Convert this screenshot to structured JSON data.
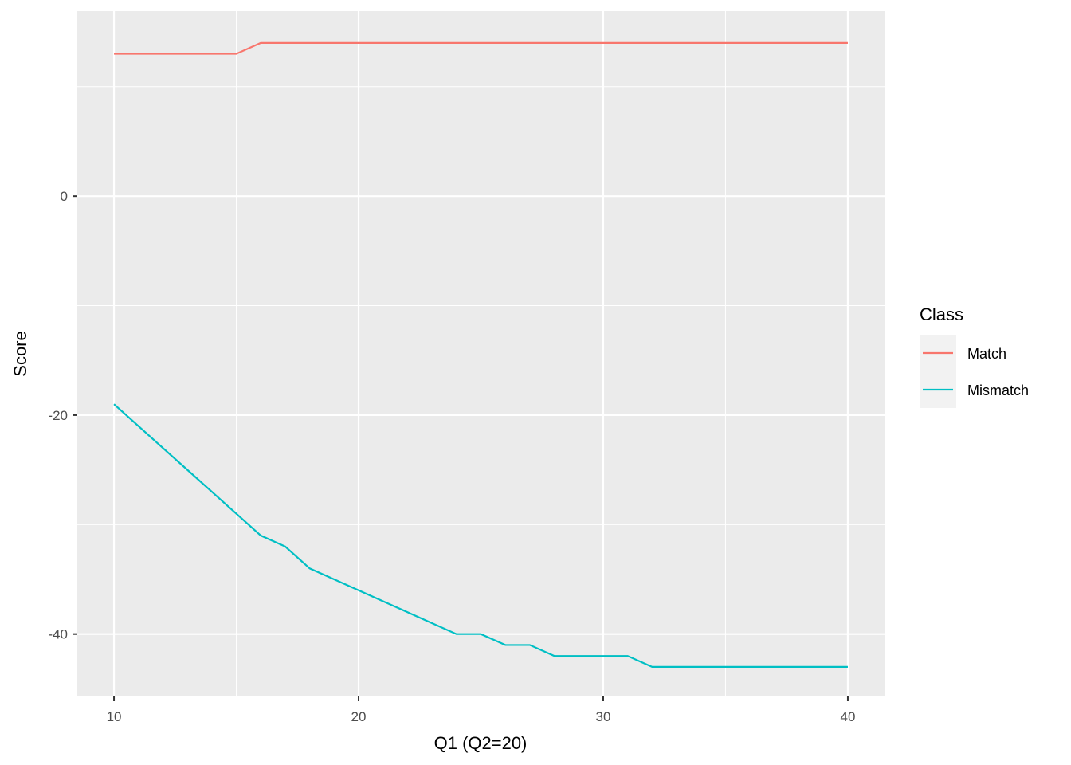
{
  "chart_data": {
    "type": "line",
    "title": "",
    "xlabel": "Q1 (Q2=20)",
    "ylabel": "Score",
    "xlim": [
      8.5,
      41.5
    ],
    "ylim": [
      -45.7,
      16.9
    ],
    "xticks": [
      10,
      20,
      30,
      40
    ],
    "yticks": [
      0,
      -20,
      -40
    ],
    "xtick_labels": [
      "10",
      "20",
      "30",
      "40"
    ],
    "ytick_labels": [
      "0",
      "-20",
      "-40"
    ],
    "grid": true,
    "legend": {
      "title": "Class",
      "position": "right"
    },
    "x": [
      10,
      11,
      12,
      13,
      14,
      15,
      16,
      17,
      18,
      19,
      20,
      21,
      22,
      23,
      24,
      25,
      26,
      27,
      28,
      29,
      30,
      31,
      32,
      33,
      34,
      35,
      36,
      37,
      38,
      39,
      40
    ],
    "series": [
      {
        "name": "Match",
        "color": "#F8766D",
        "values": [
          13,
          13,
          13,
          13,
          13,
          13,
          14,
          14,
          14,
          14,
          14,
          14,
          14,
          14,
          14,
          14,
          14,
          14,
          14,
          14,
          14,
          14,
          14,
          14,
          14,
          14,
          14,
          14,
          14,
          14,
          14
        ]
      },
      {
        "name": "Mismatch",
        "color": "#00BFC4",
        "values": [
          -19,
          -21,
          -23,
          -25,
          -27,
          -29,
          -31,
          -32,
          -34,
          -35,
          -36,
          -37,
          -38,
          -39,
          -40,
          -40,
          -41,
          -41,
          -42,
          -42,
          -42,
          -42,
          -43,
          -43,
          -43,
          -43,
          -43,
          -43,
          -43,
          -43,
          -43
        ]
      }
    ]
  }
}
